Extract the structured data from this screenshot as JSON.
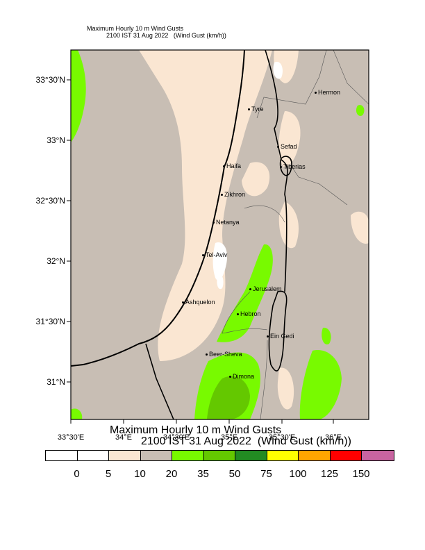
{
  "title": {
    "line1": "Maximum Hourly 10 m Wind Gusts",
    "line2": "2100 IST 31 Aug 2022   (Wind Gust (km/h))"
  },
  "bottom_title": {
    "line1": "Maximum Hourly 10 m Wind Gusts",
    "line2": "2100 IST 31 Aug 2022  (Wind Gust (km/h))"
  },
  "lat_labels": [
    "33°30'N",
    "33°N",
    "32°30'N",
    "32°N",
    "31°30'N",
    "31°N"
  ],
  "lon_labels": [
    "33°30'E",
    "34°E",
    "34°30'E",
    "35°E",
    "35°30'E",
    "36°E"
  ],
  "cities": [
    "Hermon",
    "Tyre",
    "Sefad",
    "Haifa",
    "Tiberias",
    "Zikhron",
    "Netanya",
    "Tel-Aviv",
    "Jerusalem",
    "Ashquelon",
    "Hebron",
    "Ein Gedi",
    "Beer-Sheva",
    "Dimona"
  ],
  "legend": {
    "colors": [
      "#ffffff",
      "#ffffff",
      "#fae6d2",
      "#c8beb4",
      "#78fa00",
      "#64c800",
      "#228b22",
      "#ffff00",
      "#ffa500",
      "#ff0000",
      "#c864a0"
    ],
    "labels": [
      "0",
      "5",
      "10",
      "20",
      "35",
      "50",
      "75",
      "100",
      "125",
      "150"
    ]
  },
  "map_colors": {
    "base": "#c8beb4",
    "light": "#fae6d2",
    "green": "#78fa00",
    "dark_green": "#64c800"
  }
}
